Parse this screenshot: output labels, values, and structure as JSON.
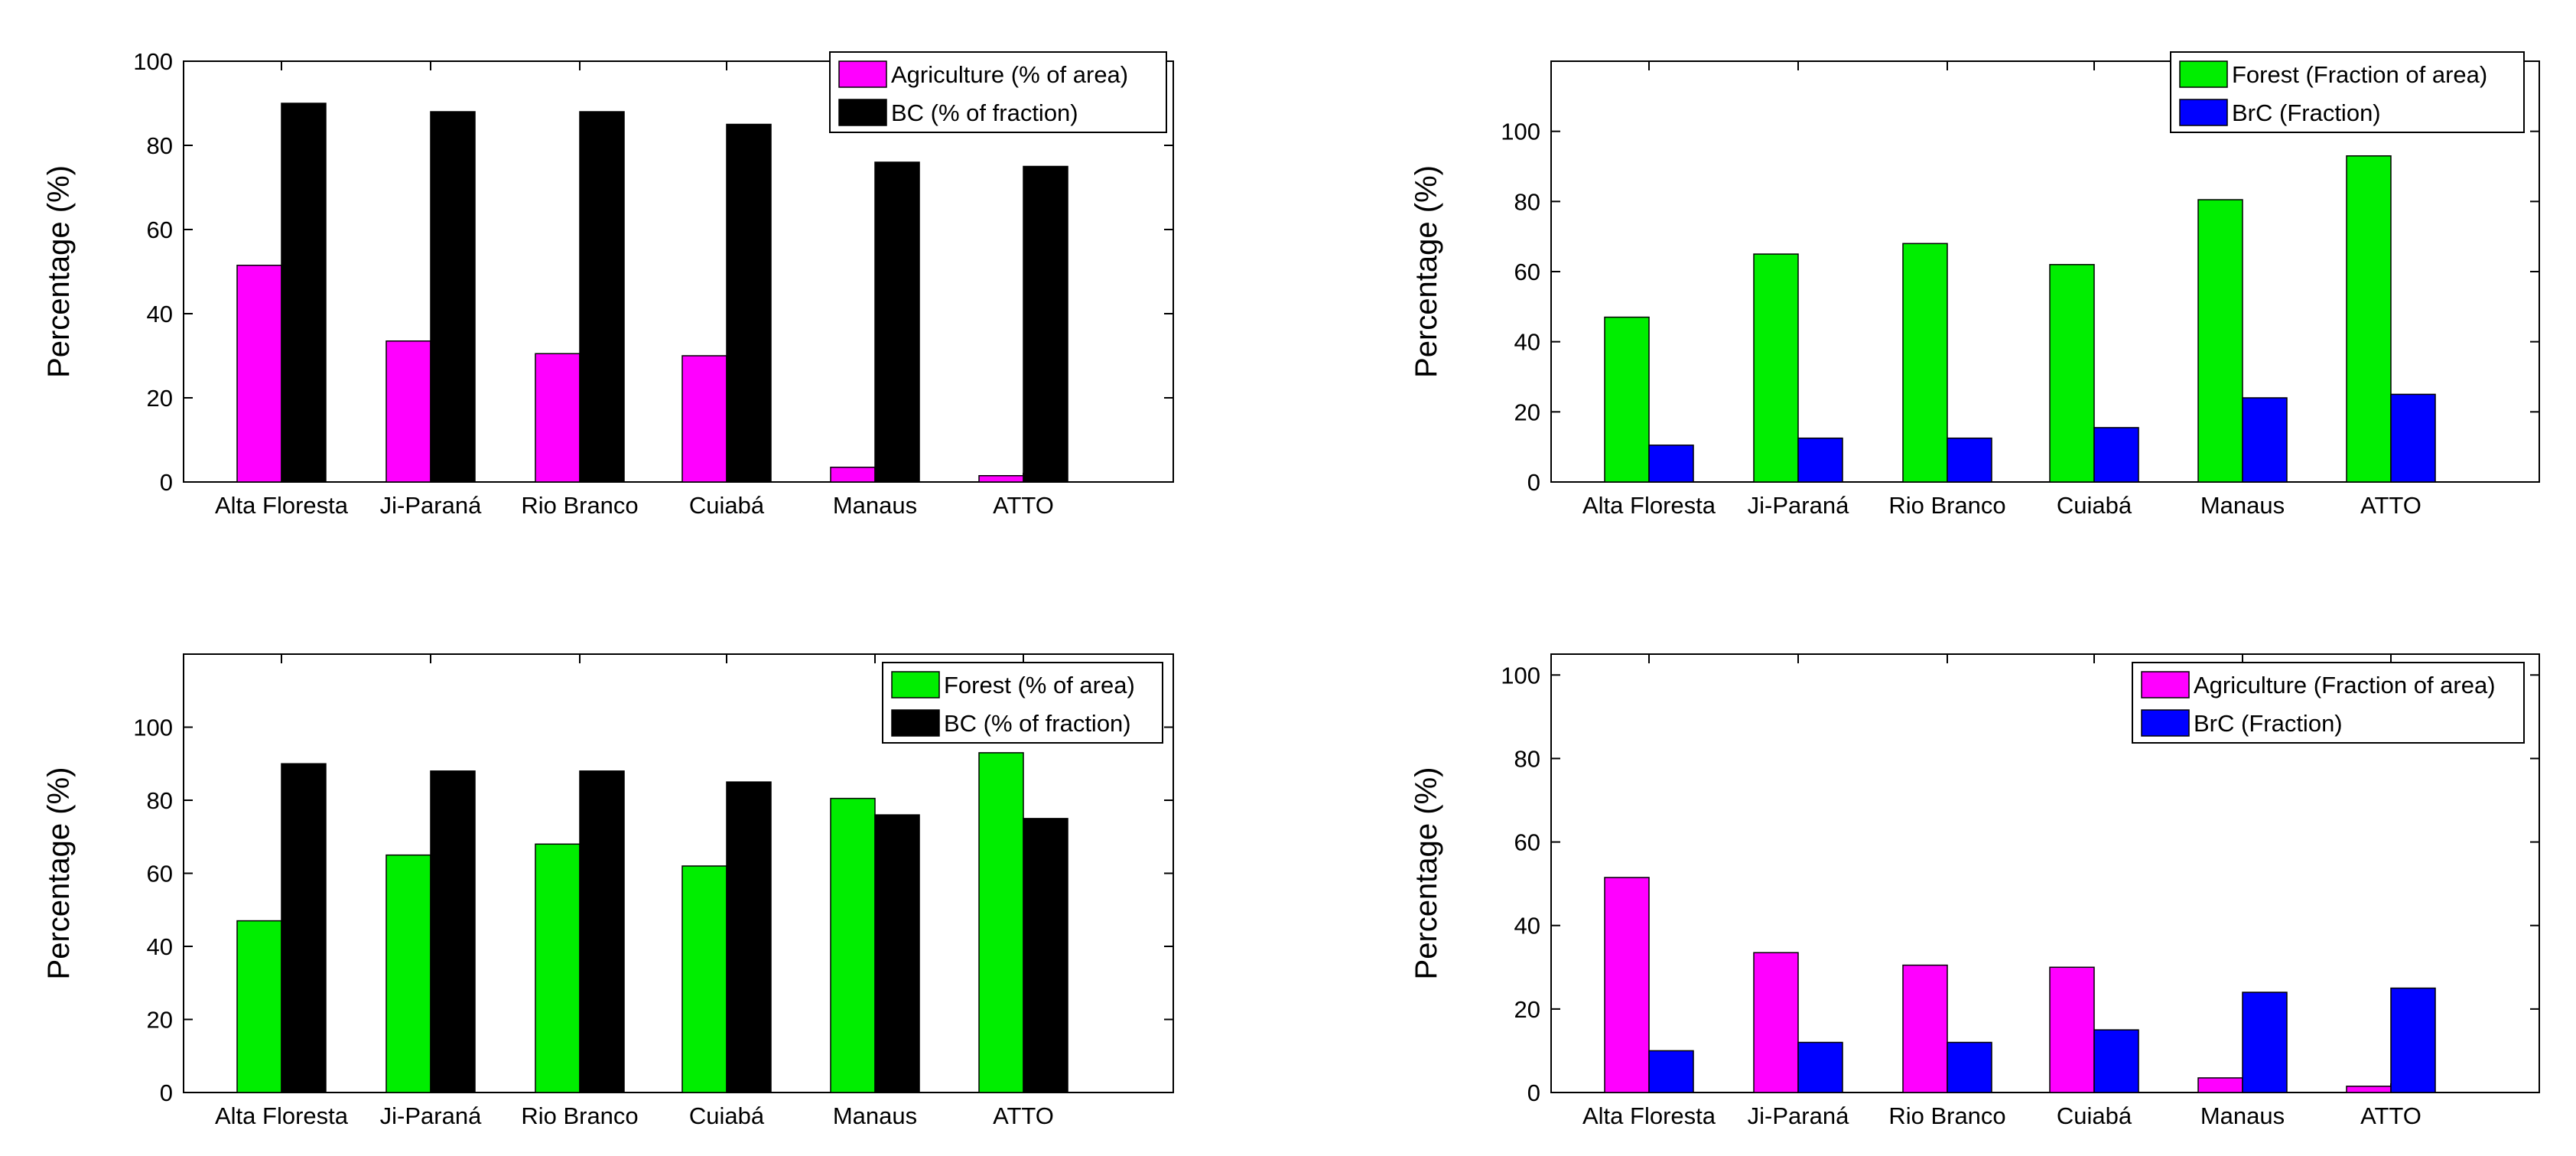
{
  "colors": {
    "agriculture": "#ff00ff",
    "agriculture_soft": "#f53df5",
    "forest": "#00ee00",
    "bc": "#000000",
    "brc": "#0000ff"
  },
  "chart_data": [
    {
      "id": "top-left",
      "type": "bar",
      "categories": [
        "Alta Floresta",
        "Ji-Paraná",
        "Rio Branco",
        "Cuiabá",
        "Manaus",
        "ATTO"
      ],
      "series": [
        {
          "name": "Agriculture (% of area)",
          "color_key": "agriculture",
          "values": [
            51.5,
            33.5,
            30.5,
            30,
            3.5,
            1.5
          ]
        },
        {
          "name": "BC (% of fraction)",
          "color_key": "bc",
          "values": [
            90,
            88,
            88,
            85,
            76,
            75
          ]
        }
      ],
      "ylabel": "Percentage (%)",
      "ylim": [
        0,
        100
      ],
      "yticks": [
        "0",
        "20",
        "40",
        "60",
        "80",
        "100"
      ],
      "legend": "top-right"
    },
    {
      "id": "top-right",
      "type": "bar",
      "categories": [
        "Alta Floresta",
        "Ji-Paraná",
        "Rio Branco",
        "Cuiabá",
        "Manaus",
        "ATTO"
      ],
      "series": [
        {
          "name": "Forest (Fraction of area)",
          "color_key": "forest",
          "values": [
            47,
            65,
            68,
            62,
            80.5,
            93
          ]
        },
        {
          "name": "BrC (Fraction)",
          "color_key": "brc",
          "values": [
            10.5,
            12.5,
            12.5,
            15.5,
            24,
            25
          ]
        }
      ],
      "ylabel": "Percentage (%)",
      "ylim": [
        0,
        120
      ],
      "yticks": [
        "0",
        "20",
        "40",
        "60",
        "80",
        "100"
      ],
      "legend": "top-right"
    },
    {
      "id": "bottom-left",
      "type": "bar",
      "categories": [
        "Alta Floresta",
        "Ji-Paraná",
        "Rio Branco",
        "Cuiabá",
        "Manaus",
        "ATTO"
      ],
      "series": [
        {
          "name": "Forest (% of area)",
          "color_key": "forest",
          "values": [
            47,
            65,
            68,
            62,
            80.5,
            93
          ]
        },
        {
          "name": "BC (% of fraction)",
          "color_key": "bc",
          "values": [
            90,
            88,
            88,
            85,
            76,
            75
          ]
        }
      ],
      "ylabel": "Percentage (%)",
      "ylim": [
        0,
        120
      ],
      "yticks": [
        "0",
        "20",
        "40",
        "60",
        "80",
        "100"
      ],
      "legend": "top-right"
    },
    {
      "id": "bottom-right",
      "type": "bar",
      "categories": [
        "Alta Floresta",
        "Ji-Paraná",
        "Rio Branco",
        "Cuiabá",
        "Manaus",
        "ATTO"
      ],
      "series": [
        {
          "name": "Agriculture (Fraction of area)",
          "color_key": "agriculture",
          "values": [
            51.5,
            33.5,
            30.5,
            30,
            3.5,
            1.5
          ]
        },
        {
          "name": "BrC (Fraction)",
          "color_key": "brc",
          "values": [
            10,
            12,
            12,
            15,
            24,
            25
          ]
        }
      ],
      "ylabel": "Percentage (%)",
      "ylim": [
        0,
        105
      ],
      "yticks": [
        "0",
        "20",
        "40",
        "60",
        "80",
        "100"
      ],
      "legend": "top-right"
    }
  ]
}
